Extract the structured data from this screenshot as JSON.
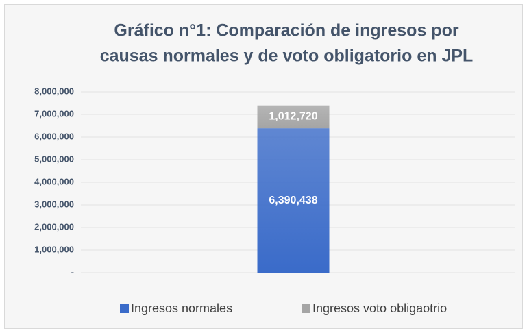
{
  "chart_data": {
    "type": "stacked_bar",
    "title": [
      "Gráfico n°1: Comparación de ingresos por",
      "causas normales y de voto obligatorio en JPL"
    ],
    "categories": [
      null
    ],
    "series": [
      {
        "name": "Ingresos normales",
        "color": "#3a6bc9",
        "values": [
          6390438
        ],
        "value_labels": [
          "6,390,438"
        ]
      },
      {
        "name": "Ingresos voto obligaotrio",
        "color": "#a5a5a5",
        "values": [
          1012720
        ],
        "value_labels": [
          "1,012,720"
        ]
      }
    ],
    "ylim": [
      0,
      8000000
    ],
    "yticks": [
      {
        "value": 0,
        "label": "-"
      },
      {
        "value": 1000000,
        "label": "1,000,000"
      },
      {
        "value": 2000000,
        "label": "2,000,000"
      },
      {
        "value": 3000000,
        "label": "3,000,000"
      },
      {
        "value": 4000000,
        "label": "4,000,000"
      },
      {
        "value": 5000000,
        "label": "5,000,000"
      },
      {
        "value": 6000000,
        "label": "6,000,000"
      },
      {
        "value": 7000000,
        "label": "7,000,000"
      },
      {
        "value": 8000000,
        "label": "8,000,000"
      }
    ],
    "grid": true,
    "legend": "bottom"
  }
}
